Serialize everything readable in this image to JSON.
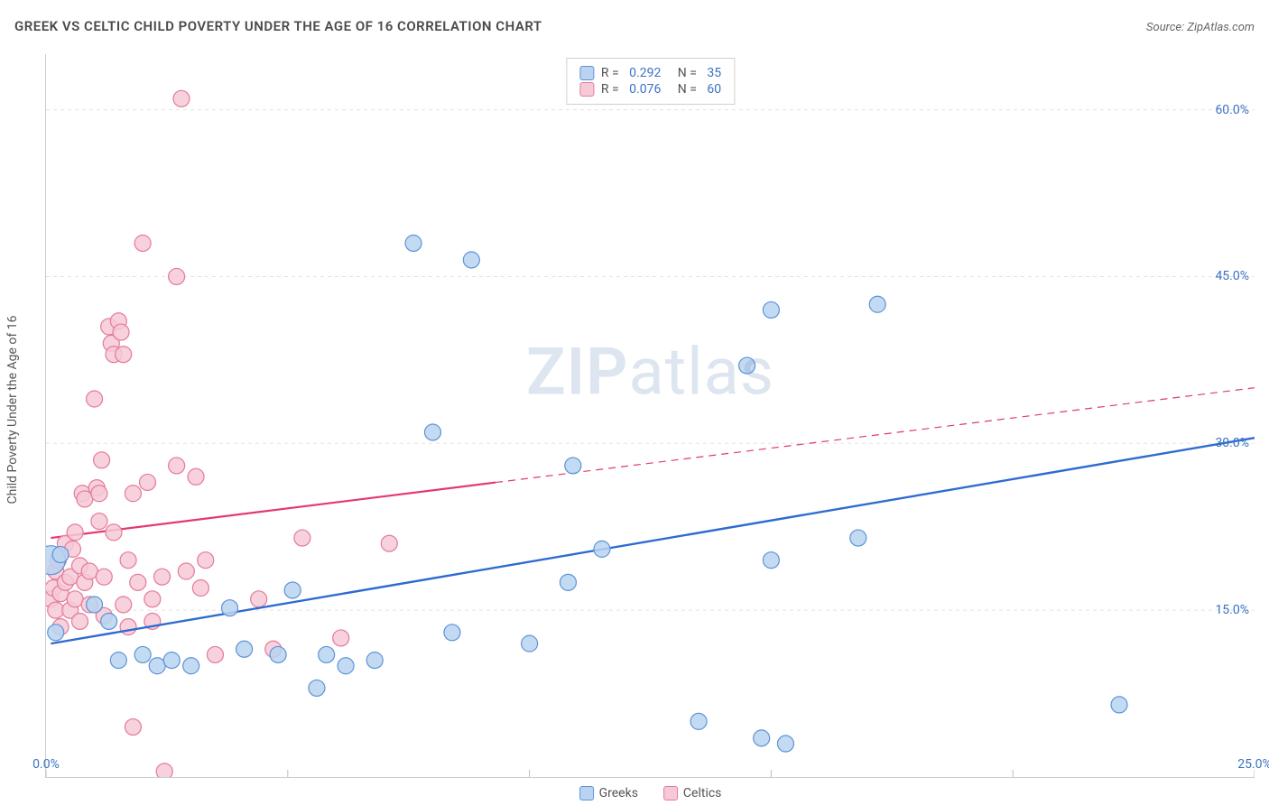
{
  "title": "GREEK VS CELTIC CHILD POVERTY UNDER THE AGE OF 16 CORRELATION CHART",
  "source_label": "Source: ZipAtlas.com",
  "y_axis_title": "Child Poverty Under the Age of 16",
  "watermark_a": "ZIP",
  "watermark_b": "atlas",
  "chart": {
    "type": "scatter",
    "xlim": [
      0,
      25
    ],
    "ylim": [
      0,
      65
    ],
    "x_ticks": [
      0,
      5,
      10,
      15,
      20,
      25
    ],
    "x_tick_labels": {
      "0": "0.0%",
      "25": "25.0%"
    },
    "y_gridlines": [
      15,
      30,
      45,
      60
    ],
    "y_tick_labels": {
      "15": "15.0%",
      "30": "30.0%",
      "45": "45.0%",
      "60": "60.0%"
    },
    "grid_color": "#e3e3e3",
    "grid_dash": "4 4",
    "tick_color": "#bdbdbd",
    "background_color": "#ffffff",
    "axis_label_color": "#3a72c4",
    "marker_radius": 9,
    "marker_radius_large": 16,
    "marker_stroke_width": 1.2
  },
  "series": [
    {
      "key": "greeks",
      "label": "Greeks",
      "fill": "#b9d3f1",
      "stroke": "#5e93d6",
      "line_color": "#2e6bd0",
      "line_width": 2.4,
      "r_value": "0.292",
      "n_value": "35",
      "trend": {
        "x1": 0.1,
        "y1": 12.0,
        "x2": 25.0,
        "y2": 30.5,
        "dash_from_x": null
      },
      "points": [
        {
          "x": 0.1,
          "y": 19.5,
          "r": 16
        },
        {
          "x": 0.3,
          "y": 20.0
        },
        {
          "x": 0.2,
          "y": 13.0
        },
        {
          "x": 1.0,
          "y": 15.5
        },
        {
          "x": 1.3,
          "y": 14.0
        },
        {
          "x": 1.5,
          "y": 10.5
        },
        {
          "x": 2.0,
          "y": 11.0
        },
        {
          "x": 2.3,
          "y": 10.0
        },
        {
          "x": 2.6,
          "y": 10.5
        },
        {
          "x": 3.0,
          "y": 10.0
        },
        {
          "x": 3.8,
          "y": 15.2
        },
        {
          "x": 4.1,
          "y": 11.5
        },
        {
          "x": 4.8,
          "y": 11.0
        },
        {
          "x": 5.1,
          "y": 16.8
        },
        {
          "x": 5.6,
          "y": 8.0
        },
        {
          "x": 5.8,
          "y": 11.0
        },
        {
          "x": 6.2,
          "y": 10.0
        },
        {
          "x": 6.8,
          "y": 10.5
        },
        {
          "x": 7.6,
          "y": 48.0
        },
        {
          "x": 8.0,
          "y": 31.0
        },
        {
          "x": 8.4,
          "y": 13.0
        },
        {
          "x": 8.8,
          "y": 46.5
        },
        {
          "x": 10.0,
          "y": 12.0
        },
        {
          "x": 10.8,
          "y": 17.5
        },
        {
          "x": 10.9,
          "y": 28.0
        },
        {
          "x": 11.5,
          "y": 20.5
        },
        {
          "x": 13.5,
          "y": 5.0
        },
        {
          "x": 14.5,
          "y": 37.0
        },
        {
          "x": 14.8,
          "y": 3.5
        },
        {
          "x": 15.0,
          "y": 42.0
        },
        {
          "x": 15.0,
          "y": 19.5
        },
        {
          "x": 15.3,
          "y": 3.0
        },
        {
          "x": 17.2,
          "y": 42.5
        },
        {
          "x": 16.8,
          "y": 21.5
        },
        {
          "x": 22.2,
          "y": 6.5
        }
      ]
    },
    {
      "key": "celtics",
      "label": "Celtics",
      "fill": "#f6c9d6",
      "stroke": "#e57a9b",
      "line_color": "#e23a6c",
      "line_width": 2.2,
      "r_value": "0.076",
      "n_value": "60",
      "trend": {
        "x1": 0.1,
        "y1": 21.5,
        "x2": 25.0,
        "y2": 35.0,
        "dash_from_x": 9.3
      },
      "points": [
        {
          "x": 0.1,
          "y": 16.0
        },
        {
          "x": 0.15,
          "y": 17.0
        },
        {
          "x": 0.2,
          "y": 18.5
        },
        {
          "x": 0.2,
          "y": 15.0
        },
        {
          "x": 0.25,
          "y": 19.5
        },
        {
          "x": 0.3,
          "y": 16.5
        },
        {
          "x": 0.3,
          "y": 13.5
        },
        {
          "x": 0.4,
          "y": 21.0
        },
        {
          "x": 0.4,
          "y": 17.5
        },
        {
          "x": 0.5,
          "y": 18.0
        },
        {
          "x": 0.5,
          "y": 15.0
        },
        {
          "x": 0.55,
          "y": 20.5
        },
        {
          "x": 0.6,
          "y": 22.0
        },
        {
          "x": 0.6,
          "y": 16.0
        },
        {
          "x": 0.7,
          "y": 19.0
        },
        {
          "x": 0.7,
          "y": 14.0
        },
        {
          "x": 0.75,
          "y": 25.5
        },
        {
          "x": 0.8,
          "y": 25.0
        },
        {
          "x": 0.8,
          "y": 17.5
        },
        {
          "x": 0.9,
          "y": 18.5
        },
        {
          "x": 0.9,
          "y": 15.5
        },
        {
          "x": 1.0,
          "y": 34.0
        },
        {
          "x": 1.05,
          "y": 26.0
        },
        {
          "x": 1.1,
          "y": 25.5
        },
        {
          "x": 1.1,
          "y": 23.0
        },
        {
          "x": 1.15,
          "y": 28.5
        },
        {
          "x": 1.2,
          "y": 18.0
        },
        {
          "x": 1.2,
          "y": 14.5
        },
        {
          "x": 1.3,
          "y": 40.5
        },
        {
          "x": 1.35,
          "y": 39.0
        },
        {
          "x": 1.4,
          "y": 38.0
        },
        {
          "x": 1.4,
          "y": 22.0
        },
        {
          "x": 1.5,
          "y": 41.0
        },
        {
          "x": 1.55,
          "y": 40.0
        },
        {
          "x": 1.6,
          "y": 38.0
        },
        {
          "x": 1.6,
          "y": 15.5
        },
        {
          "x": 1.7,
          "y": 19.5
        },
        {
          "x": 1.7,
          "y": 13.5
        },
        {
          "x": 1.8,
          "y": 25.5
        },
        {
          "x": 1.8,
          "y": 4.5
        },
        {
          "x": 1.9,
          "y": 17.5
        },
        {
          "x": 2.0,
          "y": 48.0
        },
        {
          "x": 2.1,
          "y": 26.5
        },
        {
          "x": 2.2,
          "y": 16.0
        },
        {
          "x": 2.2,
          "y": 14.0
        },
        {
          "x": 2.4,
          "y": 18.0
        },
        {
          "x": 2.45,
          "y": 0.5
        },
        {
          "x": 2.7,
          "y": 45.0
        },
        {
          "x": 2.7,
          "y": 28.0
        },
        {
          "x": 2.8,
          "y": 61.0
        },
        {
          "x": 2.9,
          "y": 18.5
        },
        {
          "x": 3.1,
          "y": 27.0
        },
        {
          "x": 3.2,
          "y": 17.0
        },
        {
          "x": 3.3,
          "y": 19.5
        },
        {
          "x": 3.5,
          "y": 11.0
        },
        {
          "x": 4.4,
          "y": 16.0
        },
        {
          "x": 4.7,
          "y": 11.5
        },
        {
          "x": 5.3,
          "y": 21.5
        },
        {
          "x": 6.1,
          "y": 12.5
        },
        {
          "x": 7.1,
          "y": 21.0
        }
      ]
    }
  ]
}
